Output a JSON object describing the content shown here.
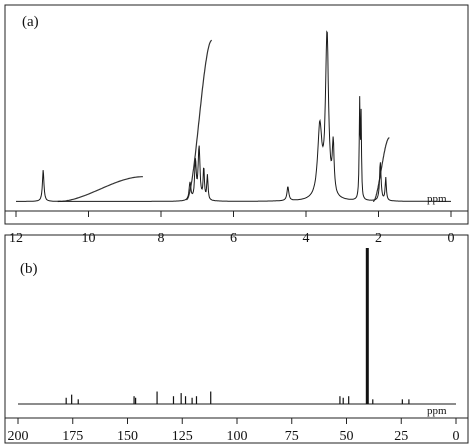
{
  "chart_data": [
    {
      "type": "line",
      "panel_label": "(a)",
      "title": "",
      "xlabel": "ppm",
      "ylabel": "",
      "x_reversed": true,
      "xlim": [
        12,
        0
      ],
      "x_ticks": [
        12,
        10,
        8,
        6,
        4,
        2,
        0
      ],
      "x_tick_labels": [
        "12",
        "10",
        "8",
        "6",
        "4",
        "2",
        "0"
      ],
      "grid": false,
      "spectrum": {
        "baseline": 0.02,
        "peaks": [
          {
            "ppm": 11.25,
            "height": 0.18,
            "width": 0.05
          },
          {
            "ppm": 7.2,
            "height": 0.1,
            "width": 0.06
          },
          {
            "ppm": 7.05,
            "height": 0.22,
            "width": 0.05
          },
          {
            "ppm": 6.95,
            "height": 0.3,
            "width": 0.06
          },
          {
            "ppm": 6.82,
            "height": 0.18,
            "width": 0.04
          },
          {
            "ppm": 6.72,
            "height": 0.14,
            "width": 0.04
          },
          {
            "ppm": 4.5,
            "height": 0.08,
            "width": 0.06
          },
          {
            "ppm": 3.62,
            "height": 0.4,
            "width": 0.14
          },
          {
            "ppm": 3.42,
            "height": 0.92,
            "width": 0.1
          },
          {
            "ppm": 3.25,
            "height": 0.28,
            "width": 0.06
          },
          {
            "ppm": 2.52,
            "height": 0.55,
            "width": 0.03
          },
          {
            "ppm": 2.48,
            "height": 0.45,
            "width": 0.025
          },
          {
            "ppm": 1.95,
            "height": 0.22,
            "width": 0.05
          },
          {
            "ppm": 1.8,
            "height": 0.13,
            "width": 0.04
          }
        ]
      },
      "integrals": [
        {
          "from": 10.85,
          "to": 8.5,
          "y_start": 0.02,
          "y_end": 0.16
        },
        {
          "from": 7.3,
          "to": 6.6,
          "y_start": 0.03,
          "y_end": 0.93
        },
        {
          "from": 2.15,
          "to": 1.7,
          "y_start": 0.02,
          "y_end": 0.38
        }
      ]
    },
    {
      "type": "line",
      "panel_label": "(b)",
      "title": "",
      "xlabel": "ppm",
      "ylabel": "",
      "x_reversed": true,
      "xlim": [
        200,
        0
      ],
      "x_ticks": [
        200,
        175,
        150,
        125,
        100,
        75,
        50,
        25,
        0
      ],
      "x_tick_labels": [
        "200",
        "175",
        "150",
        "125",
        "100",
        "75",
        "50",
        "25",
        "0"
      ],
      "grid": false,
      "spectrum": {
        "baseline": 0.0,
        "peaks": [
          {
            "ppm": 178.0,
            "height": 0.04
          },
          {
            "ppm": 175.5,
            "height": 0.06
          },
          {
            "ppm": 172.5,
            "height": 0.03
          },
          {
            "ppm": 147.0,
            "height": 0.05
          },
          {
            "ppm": 146.3,
            "height": 0.04
          },
          {
            "ppm": 136.5,
            "height": 0.08
          },
          {
            "ppm": 129.0,
            "height": 0.05
          },
          {
            "ppm": 125.5,
            "height": 0.07
          },
          {
            "ppm": 123.5,
            "height": 0.05
          },
          {
            "ppm": 120.5,
            "height": 0.04
          },
          {
            "ppm": 118.5,
            "height": 0.05
          },
          {
            "ppm": 112.0,
            "height": 0.08
          },
          {
            "ppm": 53.0,
            "height": 0.05
          },
          {
            "ppm": 51.5,
            "height": 0.04
          },
          {
            "ppm": 49.0,
            "height": 0.05
          },
          {
            "ppm": 40.5,
            "height": 1.0
          },
          {
            "ppm": 38.0,
            "height": 0.03
          },
          {
            "ppm": 24.5,
            "height": 0.03
          },
          {
            "ppm": 21.5,
            "height": 0.03
          }
        ]
      }
    }
  ]
}
